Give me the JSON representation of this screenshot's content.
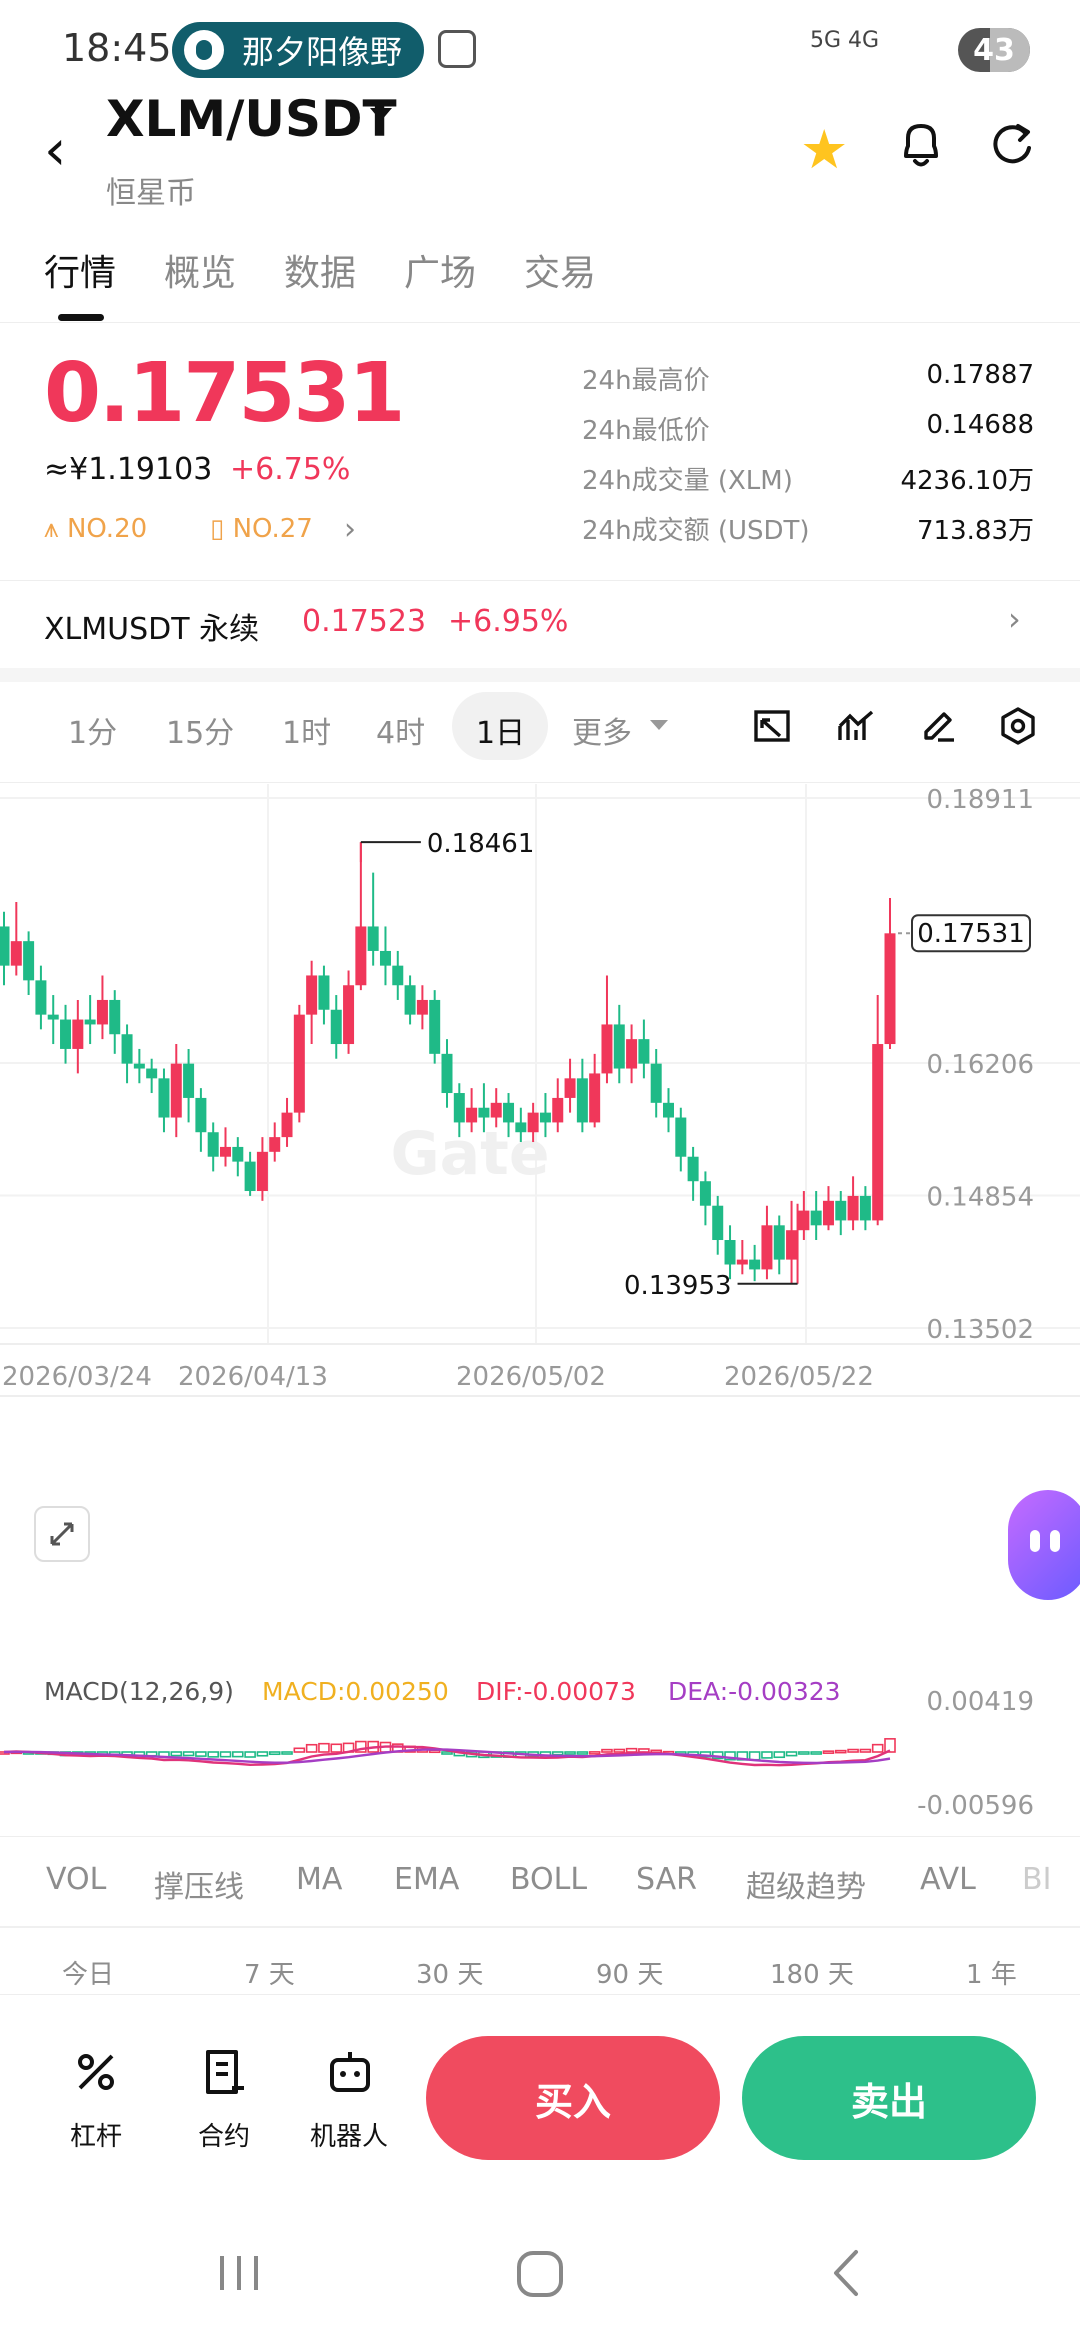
{
  "status": {
    "time": "18:45",
    "app_pill": "那夕阳像野",
    "network": "5G 4G",
    "battery": "43"
  },
  "header": {
    "pair": "XLM/USDT",
    "subtitle": "恒星币"
  },
  "tabs": [
    "行情",
    "概览",
    "数据",
    "广场",
    "交易"
  ],
  "price": {
    "last": "0.17531",
    "cny": "≈¥1.19103",
    "change": "+6.75%",
    "rank1": "NO.20",
    "rank2": "NO.27"
  },
  "stats": [
    {
      "label": "24h最高价",
      "value": "0.17887"
    },
    {
      "label": "24h最低价",
      "value": "0.14688"
    },
    {
      "label": "24h成交量 (XLM)",
      "value": "4236.10万"
    },
    {
      "label": "24h成交额 (USDT)",
      "value": "713.83万"
    }
  ],
  "perpetual": {
    "name": "XLMUSDT 永续",
    "price": "0.17523",
    "change": "+6.95%"
  },
  "timeframes": [
    "1分",
    "15分",
    "1时",
    "4时",
    "1日",
    "更多"
  ],
  "chart_data": {
    "type": "candlestick",
    "watermark": "Gate",
    "y_ticks": [
      "0.18911",
      "0.16206",
      "0.14854",
      "0.13502"
    ],
    "y_tick_values": [
      0.18911,
      0.16206,
      0.14854,
      0.13502
    ],
    "ylim": [
      0.13502,
      0.18911
    ],
    "x_labels": [
      "2026/03/24",
      "2026/04/13",
      "2026/05/02",
      "2026/05/22"
    ],
    "last_price_label": "0.17531",
    "max_label": "0.18461",
    "min_label": "0.13953",
    "candles": [
      [
        0.176,
        0.172,
        0.1775,
        0.17
      ],
      [
        0.172,
        0.1745,
        0.1785,
        0.171
      ],
      [
        0.1745,
        0.1705,
        0.1755,
        0.169
      ],
      [
        0.1705,
        0.167,
        0.172,
        0.1655
      ],
      [
        0.167,
        0.1665,
        0.169,
        0.164
      ],
      [
        0.1665,
        0.1635,
        0.168,
        0.162
      ],
      [
        0.1635,
        0.1665,
        0.1685,
        0.161
      ],
      [
        0.1665,
        0.166,
        0.169,
        0.164
      ],
      [
        0.166,
        0.1685,
        0.171,
        0.1645
      ],
      [
        0.1685,
        0.165,
        0.1695,
        0.163
      ],
      [
        0.165,
        0.162,
        0.166,
        0.16
      ],
      [
        0.162,
        0.1615,
        0.1635,
        0.16
      ],
      [
        0.1615,
        0.1605,
        0.1625,
        0.159
      ],
      [
        0.1605,
        0.1565,
        0.1615,
        0.155
      ],
      [
        0.1565,
        0.162,
        0.164,
        0.1545
      ],
      [
        0.162,
        0.1585,
        0.1635,
        0.156
      ],
      [
        0.1585,
        0.155,
        0.1595,
        0.153
      ],
      [
        0.155,
        0.1525,
        0.156,
        0.151
      ],
      [
        0.1525,
        0.1535,
        0.1555,
        0.1515
      ],
      [
        0.1535,
        0.152,
        0.1545,
        0.1505
      ],
      [
        0.152,
        0.149,
        0.153,
        0.1485
      ],
      [
        0.149,
        0.153,
        0.1545,
        0.148
      ],
      [
        0.153,
        0.1545,
        0.156,
        0.152
      ],
      [
        0.1545,
        0.157,
        0.1585,
        0.1535
      ],
      [
        0.157,
        0.167,
        0.168,
        0.156
      ],
      [
        0.167,
        0.171,
        0.1725,
        0.164
      ],
      [
        0.171,
        0.1675,
        0.172,
        0.166
      ],
      [
        0.1675,
        0.164,
        0.169,
        0.1625
      ],
      [
        0.164,
        0.17,
        0.1715,
        0.163
      ],
      [
        0.17,
        0.176,
        0.1846,
        0.1695
      ],
      [
        0.176,
        0.1735,
        0.1815,
        0.172
      ],
      [
        0.1735,
        0.172,
        0.176,
        0.17
      ],
      [
        0.172,
        0.17,
        0.1735,
        0.1685
      ],
      [
        0.17,
        0.167,
        0.171,
        0.166
      ],
      [
        0.167,
        0.1685,
        0.17,
        0.1655
      ],
      [
        0.1685,
        0.163,
        0.1695,
        0.162
      ],
      [
        0.163,
        0.159,
        0.1645,
        0.1575
      ],
      [
        0.159,
        0.156,
        0.16,
        0.1545
      ],
      [
        0.156,
        0.1575,
        0.1595,
        0.155
      ],
      [
        0.1575,
        0.1565,
        0.16,
        0.155
      ],
      [
        0.1565,
        0.158,
        0.1595,
        0.1555
      ],
      [
        0.158,
        0.156,
        0.159,
        0.1545
      ],
      [
        0.156,
        0.155,
        0.1575,
        0.154
      ],
      [
        0.155,
        0.157,
        0.158,
        0.154
      ],
      [
        0.157,
        0.156,
        0.159,
        0.1545
      ],
      [
        0.156,
        0.1585,
        0.1605,
        0.155
      ],
      [
        0.1585,
        0.1605,
        0.1625,
        0.157
      ],
      [
        0.1605,
        0.156,
        0.1625,
        0.155
      ],
      [
        0.156,
        0.161,
        0.163,
        0.1555
      ],
      [
        0.161,
        0.166,
        0.171,
        0.16
      ],
      [
        0.166,
        0.1615,
        0.168,
        0.16
      ],
      [
        0.1615,
        0.1645,
        0.166,
        0.16
      ],
      [
        0.1645,
        0.162,
        0.1665,
        0.1605
      ],
      [
        0.162,
        0.158,
        0.1635,
        0.1565
      ],
      [
        0.158,
        0.1565,
        0.1595,
        0.155
      ],
      [
        0.1565,
        0.1525,
        0.1575,
        0.151
      ],
      [
        0.1525,
        0.15,
        0.1535,
        0.148
      ],
      [
        0.15,
        0.1475,
        0.151,
        0.1455
      ],
      [
        0.1475,
        0.144,
        0.1485,
        0.1425
      ],
      [
        0.144,
        0.1415,
        0.1455,
        0.14
      ],
      [
        0.1415,
        0.142,
        0.144,
        0.1405
      ],
      [
        0.142,
        0.141,
        0.1435,
        0.1398
      ],
      [
        0.141,
        0.1455,
        0.1475,
        0.14
      ],
      [
        0.1455,
        0.142,
        0.1465,
        0.1405
      ],
      [
        0.142,
        0.145,
        0.148,
        0.1395
      ],
      [
        0.145,
        0.147,
        0.149,
        0.144
      ],
      [
        0.147,
        0.1455,
        0.149,
        0.144
      ],
      [
        0.1455,
        0.148,
        0.1495,
        0.145
      ],
      [
        0.148,
        0.146,
        0.149,
        0.1445
      ],
      [
        0.146,
        0.1485,
        0.1505,
        0.145
      ],
      [
        0.1485,
        0.146,
        0.1495,
        0.145
      ],
      [
        0.146,
        0.164,
        0.169,
        0.1455
      ],
      [
        0.164,
        0.1753,
        0.1789,
        0.1635
      ]
    ]
  },
  "macd": {
    "title": "MACD(12,26,9)",
    "macd": "MACD:0.00250",
    "dif": "DIF:-0.00073",
    "dea": "DEA:-0.00323",
    "y_top": "0.00419",
    "y_bottom": "-0.00596"
  },
  "indicators": [
    "VOL",
    "撑压线",
    "MA",
    "EMA",
    "BOLL",
    "SAR",
    "超级趋势",
    "AVL",
    "BI"
  ],
  "ranges": [
    "今日",
    "7 天",
    "30 天",
    "90 天",
    "180 天",
    "1 年"
  ],
  "bottom": {
    "leverage": "杠杆",
    "contract": "合约",
    "robot": "机器人",
    "buy": "买入",
    "sell": "卖出"
  },
  "colors": {
    "up": "#f0375a",
    "down": "#1fba87"
  }
}
